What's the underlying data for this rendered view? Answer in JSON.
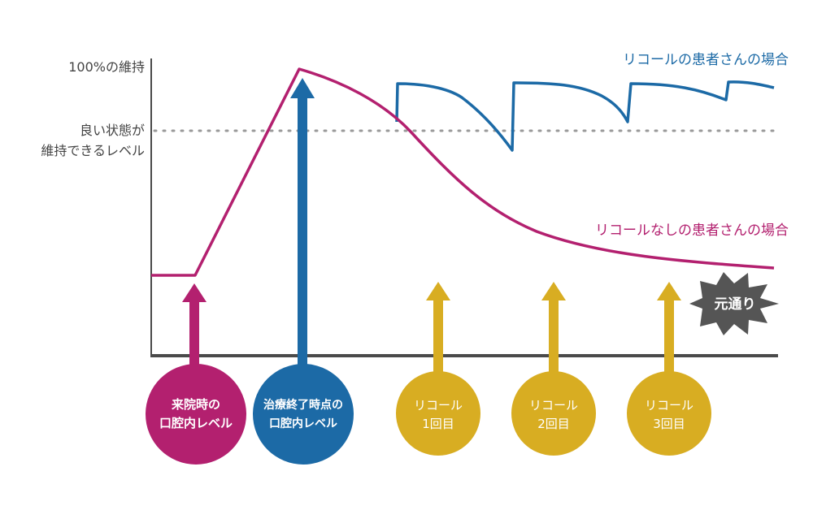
{
  "colors": {
    "axis": "#4a4a4a",
    "magenta": "#b3206f",
    "blue": "#1c6aa6",
    "gold": "#d8ad22",
    "dotted": "#9a9a9a",
    "badge": "#555555"
  },
  "y_axis": {
    "label_100": "100%の維持",
    "label_good_line1": "良い状態が",
    "label_good_line2": "維持できるレベル"
  },
  "series": {
    "recall": {
      "label": "リコールの患者さんの場合"
    },
    "no_recall": {
      "label": "リコールなしの患者さんの場合"
    }
  },
  "badge": {
    "text": "元通り"
  },
  "circles": [
    {
      "line1": "来院時の",
      "line2": "口腔内レベル"
    },
    {
      "line1": "治療終了時点の",
      "line2": "口腔内レベル"
    },
    {
      "line1": "リコール",
      "line2": "1回目"
    },
    {
      "line1": "リコール",
      "line2": "2回目"
    },
    {
      "line1": "リコール",
      "line2": "3回目"
    }
  ]
}
